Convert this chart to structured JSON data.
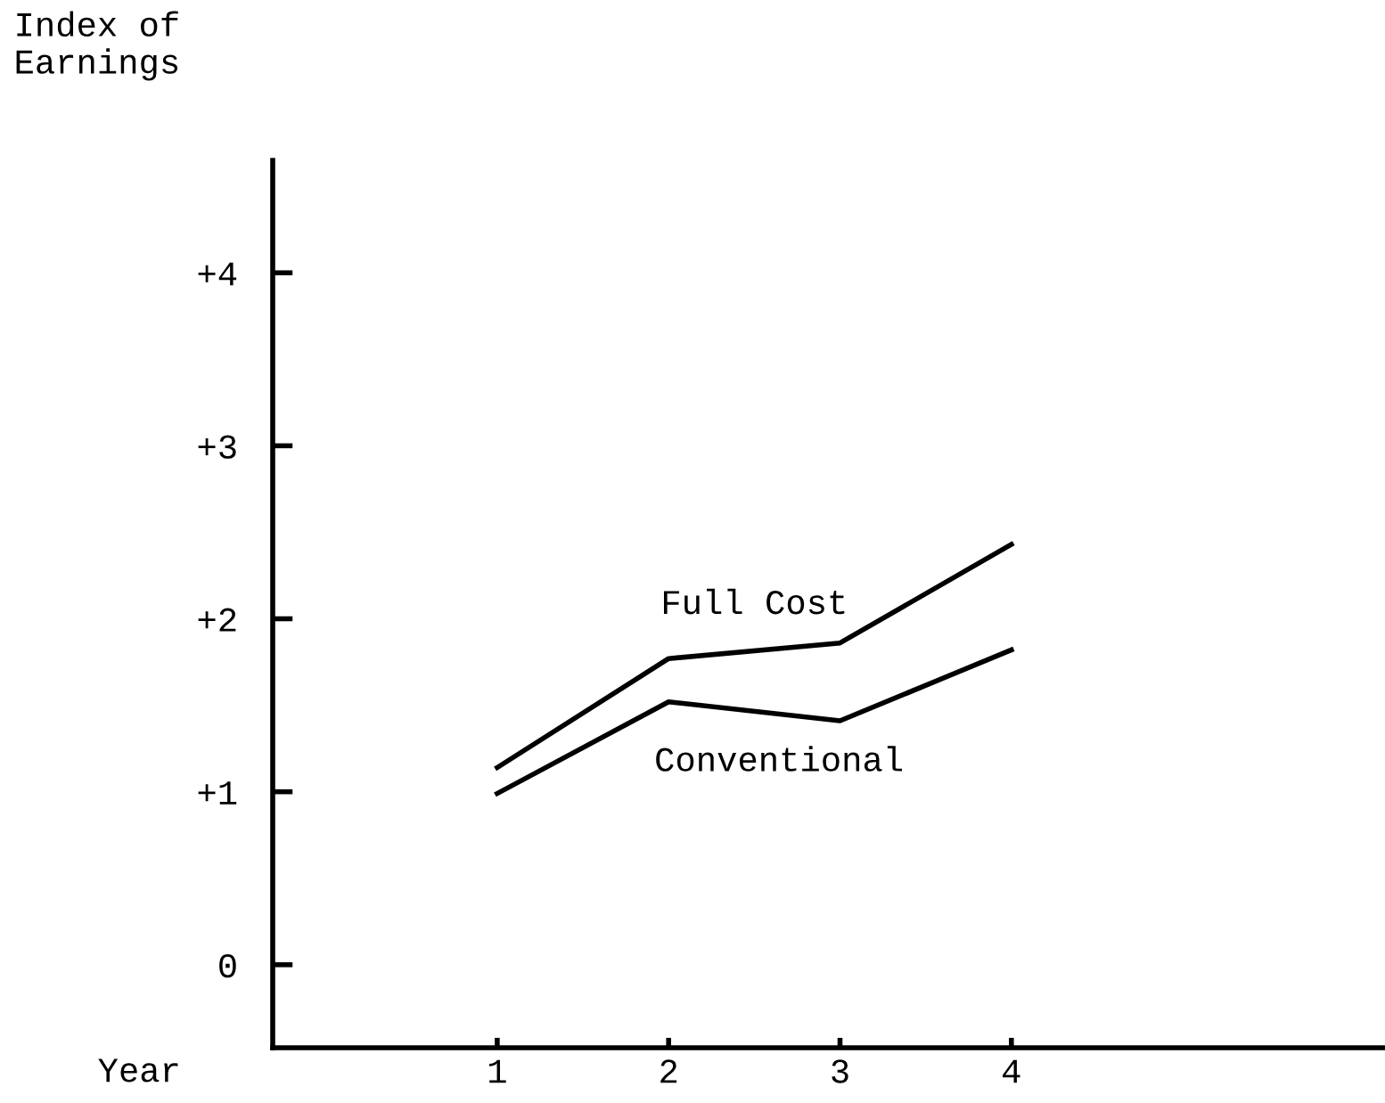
{
  "chart_data": {
    "type": "line",
    "xlabel": "Year",
    "ylabel": "Index of Earnings",
    "x": [
      1,
      2,
      3,
      4
    ],
    "series": [
      {
        "name": "Full Cost",
        "color": "#000000",
        "values": [
          1.14,
          1.77,
          1.86,
          2.43
        ]
      },
      {
        "name": "Conventional",
        "color": "#000000",
        "values": [
          0.99,
          1.52,
          1.41,
          1.82
        ]
      }
    ],
    "xlim": [
      -0.31,
      6.18
    ],
    "ylim": [
      -0.48,
      4.65
    ],
    "xticks": [
      1,
      2,
      3,
      4
    ],
    "yticks": [
      {
        "value": 0,
        "label": "0"
      },
      {
        "value": 1,
        "label": "+1"
      },
      {
        "value": 2,
        "label": "+2"
      },
      {
        "value": 3,
        "label": "+3"
      },
      {
        "value": 4,
        "label": "+4"
      }
    ],
    "grid": false,
    "legend": false,
    "marker": "none",
    "line_style": "solid"
  }
}
